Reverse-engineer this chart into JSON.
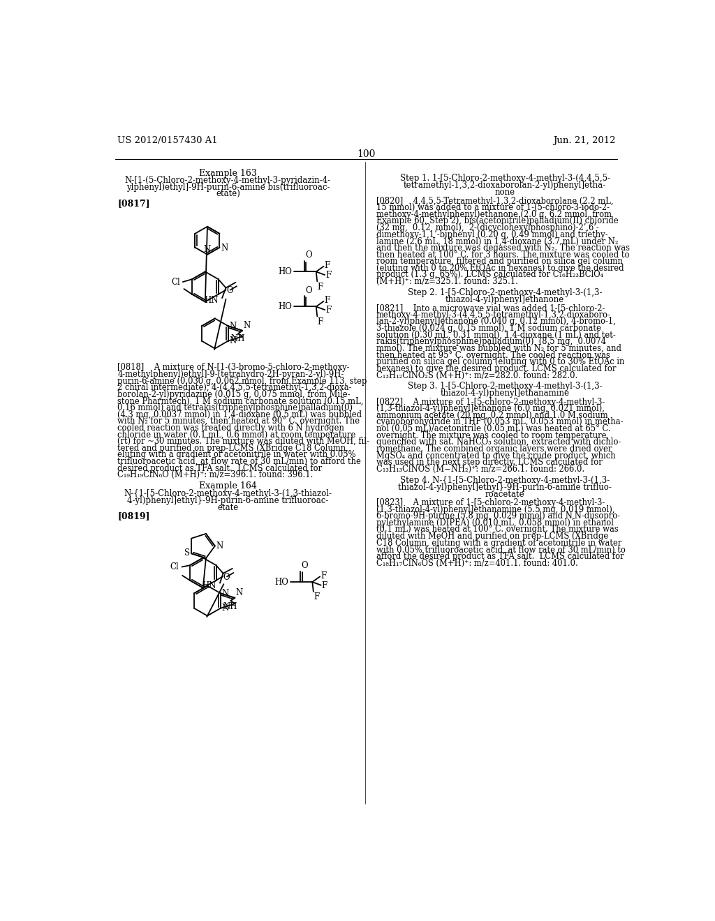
{
  "background_color": "#ffffff",
  "page_number": "100",
  "header_left": "US 2012/0157430 A1",
  "header_right": "Jun. 21, 2012"
}
